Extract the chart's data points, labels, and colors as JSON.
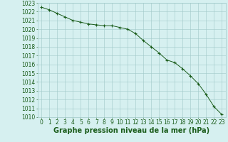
{
  "x": [
    0,
    1,
    2,
    3,
    4,
    5,
    6,
    7,
    8,
    9,
    10,
    11,
    12,
    13,
    14,
    15,
    16,
    17,
    18,
    19,
    20,
    21,
    22,
    23
  ],
  "y": [
    1022.5,
    1022.2,
    1021.8,
    1021.4,
    1021.0,
    1020.8,
    1020.6,
    1020.5,
    1020.4,
    1020.4,
    1020.2,
    1020.0,
    1019.5,
    1018.7,
    1018.0,
    1017.3,
    1016.5,
    1016.2,
    1015.5,
    1014.7,
    1013.8,
    1012.6,
    1011.2,
    1010.3
  ],
  "line_color": "#1a5c1a",
  "marker": "+",
  "marker_size": 3,
  "marker_color": "#1a5c1a",
  "bg_color": "#d6f0f0",
  "grid_color": "#a0c8c8",
  "xlabel": "Graphe pression niveau de la mer (hPa)",
  "xlabel_fontsize": 7,
  "xlabel_color": "#1a5c1a",
  "tick_color": "#1a5c1a",
  "tick_fontsize": 5.5,
  "ylim": [
    1010,
    1023
  ],
  "xlim": [
    -0.5,
    23.5
  ],
  "yticks": [
    1010,
    1011,
    1012,
    1013,
    1014,
    1015,
    1016,
    1017,
    1018,
    1019,
    1020,
    1021,
    1022,
    1023
  ],
  "xticks": [
    0,
    1,
    2,
    3,
    4,
    5,
    6,
    7,
    8,
    9,
    10,
    11,
    12,
    13,
    14,
    15,
    16,
    17,
    18,
    19,
    20,
    21,
    22,
    23
  ]
}
